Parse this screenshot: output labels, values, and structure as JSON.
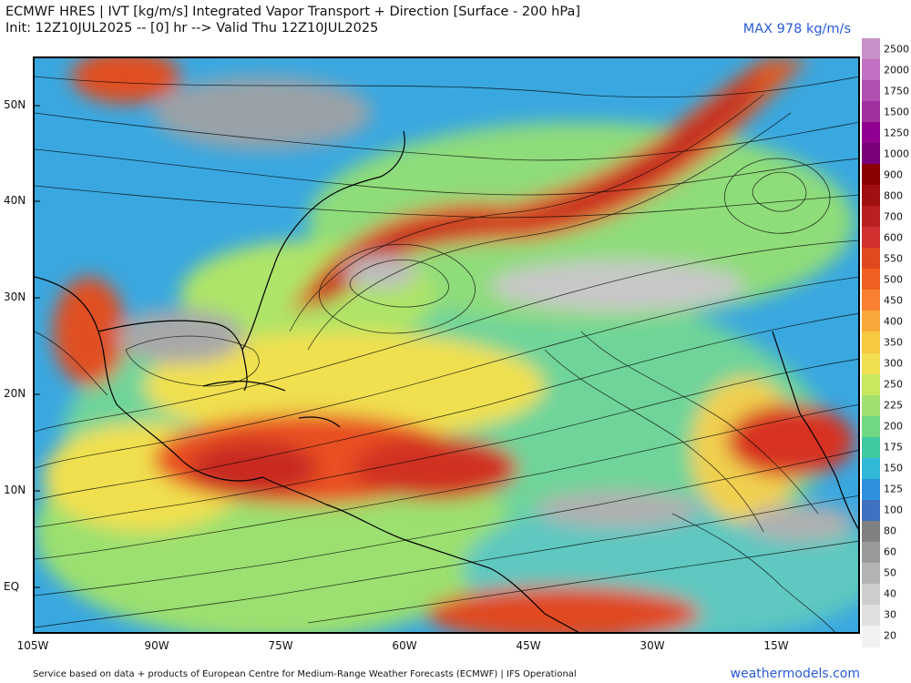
{
  "header": {
    "title_line1": "ECMWF HRES | IVT [kg/m/s] Integrated Vapor Transport + Direction [Surface - 200 hPa]",
    "title_line2": "Init: 12Z10JUL2025 -- [0] hr --> Valid Thu 12Z10JUL2025",
    "max_label": "MAX 978 kg/m/s"
  },
  "axes": {
    "lat_labels": [
      "50N",
      "40N",
      "30N",
      "20N",
      "10N",
      "EQ"
    ],
    "lon_labels": [
      "105W",
      "90W",
      "75W",
      "60W",
      "45W",
      "30W",
      "15W"
    ]
  },
  "colorbar": {
    "levels": [
      "2500",
      "2000",
      "1750",
      "1500",
      "1250",
      "1000",
      "900",
      "800",
      "700",
      "600",
      "550",
      "500",
      "450",
      "400",
      "350",
      "300",
      "250",
      "225",
      "200",
      "175",
      "150",
      "125",
      "100",
      "80",
      "60",
      "50",
      "40",
      "30",
      "20"
    ],
    "colors": [
      "#c890c8",
      "#c070c0",
      "#b050b0",
      "#a030a0",
      "#900090",
      "#780078",
      "#8b0000",
      "#a01010",
      "#b82020",
      "#d03030",
      "#e04820",
      "#f06020",
      "#f88030",
      "#f8a838",
      "#f8c840",
      "#f0e050",
      "#c8e860",
      "#a0e070",
      "#70d880",
      "#40c8a0",
      "#30b8d8",
      "#3090e0",
      "#4070c0",
      "#808080",
      "#9a9a9a",
      "#b4b4b4",
      "#cdcdcd",
      "#e0e0e0",
      "#f2f2f2"
    ]
  },
  "footer": {
    "credit": "Service based on data + products of European Centre for Medium-Range Weather Forecasts (ECMWF) | IFS Operational",
    "site": "weathermodels.com"
  }
}
